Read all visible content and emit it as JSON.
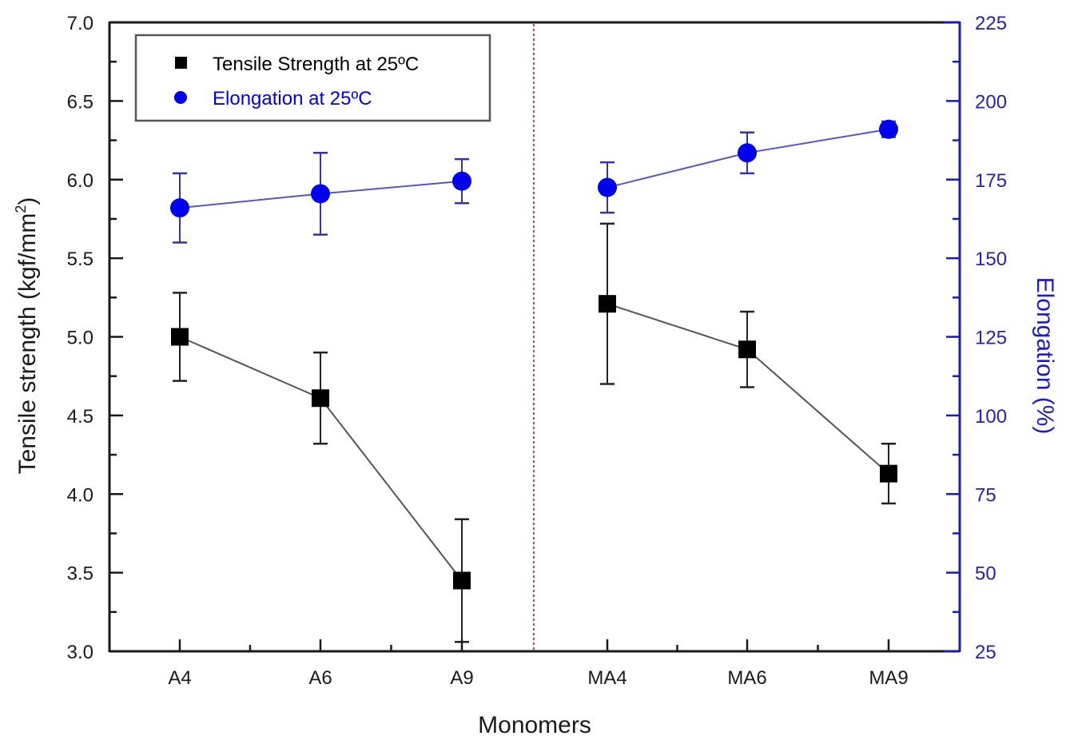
{
  "chart_data": {
    "type": "line",
    "title": "",
    "xlabel": "Monomers",
    "categories": [
      "A4",
      "A6",
      "A9",
      "MA4",
      "MA6",
      "MA9"
    ],
    "divider_after_index": 2,
    "y_left": {
      "label": "Tensile strength (kgf/mm",
      "label_superscript": "2",
      "label_suffix": ")",
      "range": [
        3.0,
        7.0
      ],
      "ticks": [
        "3.0",
        "3.5",
        "4.0",
        "4.5",
        "5.0",
        "5.5",
        "6.0",
        "6.5",
        "7.0"
      ],
      "tick_values": [
        3.0,
        3.5,
        4.0,
        4.5,
        5.0,
        5.5,
        6.0,
        6.5,
        7.0
      ]
    },
    "y_right": {
      "label": "Elongation (%)",
      "range": [
        25,
        225
      ],
      "ticks": [
        "25",
        "50",
        "75",
        "100",
        "125",
        "150",
        "175",
        "200",
        "225"
      ],
      "tick_values": [
        25,
        50,
        75,
        100,
        125,
        150,
        175,
        200,
        225
      ]
    },
    "legend_position": "top-left",
    "series": [
      {
        "name": "Tensile Strength at 25ºC",
        "axis": "left",
        "marker": "square",
        "color": "#000000",
        "line_color": "#555555",
        "values": [
          5.0,
          4.61,
          3.45,
          5.21,
          4.92,
          4.13
        ],
        "error": [
          0.28,
          0.29,
          0.39,
          0.51,
          0.24,
          0.19
        ]
      },
      {
        "name": "Elongation at 25ºC",
        "axis": "right",
        "marker": "circle",
        "color": "#0000ee",
        "line_color": "#5555cc",
        "values": [
          166,
          170.5,
          174.5,
          172.5,
          183.5,
          191
        ],
        "error": [
          11,
          13,
          7,
          8,
          6.5,
          2.5
        ]
      }
    ],
    "colors": {
      "left_axis": "#1a1a1a",
      "right_axis": "#1a1ab8",
      "divider": "#d04050",
      "legend_border": "#555555"
    }
  }
}
